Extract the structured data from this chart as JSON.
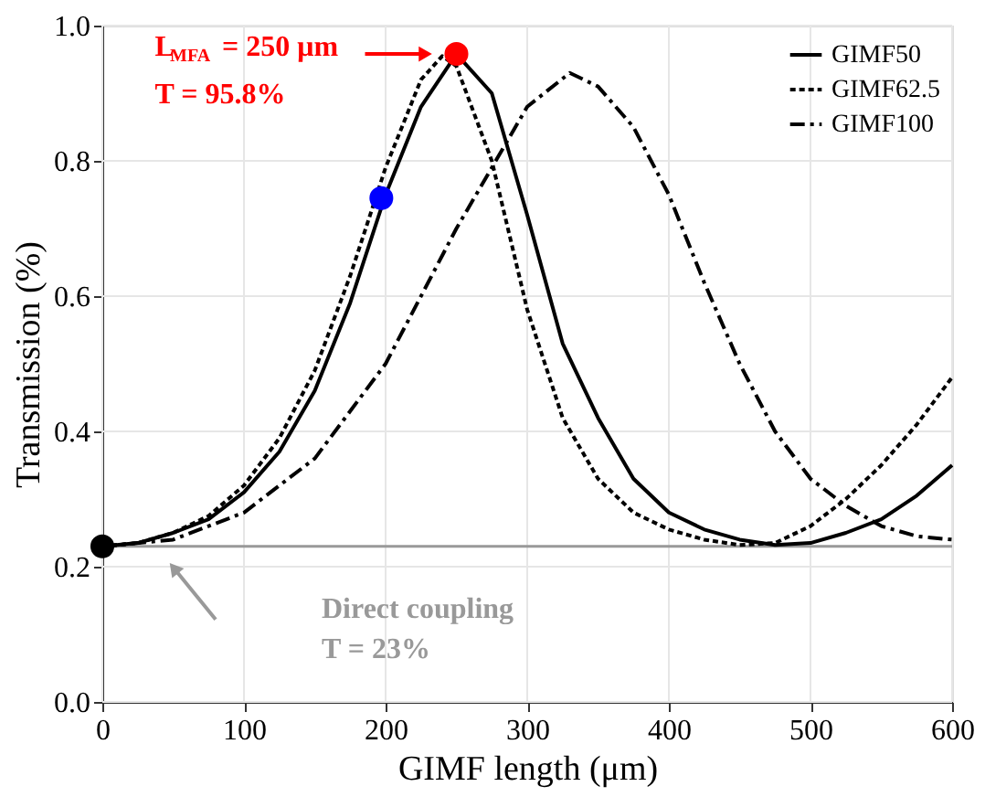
{
  "chart_data": {
    "type": "line",
    "xlabel": "GIMF length (μm)",
    "ylabel": "Transmission (%)",
    "xlim": [
      0,
      600
    ],
    "xticks": [
      0,
      100,
      200,
      300,
      400,
      500,
      600
    ],
    "ylim": [
      0,
      1
    ],
    "yticks": [
      {
        "value": 0,
        "label": "0.0"
      },
      0.2,
      0.4,
      0.6,
      0.8,
      {
        "value": 1,
        "label": "1.0"
      }
    ],
    "grid": true,
    "legend": "top right",
    "marker": "none",
    "series": [
      {
        "name": "GIMF50",
        "color": "#000000",
        "line_style": "solid",
        "x": [
          0,
          25,
          50,
          75,
          100,
          125,
          150,
          175,
          200,
          225,
          250,
          275,
          300,
          325,
          350,
          375,
          400,
          425,
          450,
          475,
          500,
          525,
          550,
          575,
          600
        ],
        "values": [
          0.23,
          0.235,
          0.25,
          0.27,
          0.31,
          0.37,
          0.46,
          0.59,
          0.75,
          0.88,
          0.958,
          0.9,
          0.72,
          0.53,
          0.42,
          0.33,
          0.28,
          0.255,
          0.24,
          0.232,
          0.235,
          0.25,
          0.27,
          0.305,
          0.35
        ]
      },
      {
        "name": "GIMF62.5",
        "color": "#000000",
        "line_style": "dotted",
        "x": [
          0,
          25,
          50,
          75,
          100,
          125,
          150,
          175,
          200,
          225,
          240,
          250,
          275,
          300,
          325,
          350,
          375,
          400,
          425,
          450,
          475,
          500,
          525,
          550,
          575,
          600
        ],
        "values": [
          0.23,
          0.235,
          0.25,
          0.275,
          0.32,
          0.39,
          0.49,
          0.63,
          0.79,
          0.92,
          0.955,
          0.94,
          0.8,
          0.58,
          0.42,
          0.33,
          0.28,
          0.255,
          0.24,
          0.232,
          0.235,
          0.26,
          0.3,
          0.35,
          0.41,
          0.48
        ]
      },
      {
        "name": "GIMF100",
        "color": "#000000",
        "line_style": "dashed",
        "x": [
          0,
          50,
          100,
          150,
          200,
          250,
          275,
          300,
          330,
          350,
          375,
          400,
          425,
          450,
          475,
          500,
          525,
          550,
          575,
          600
        ],
        "values": [
          0.23,
          0.24,
          0.28,
          0.36,
          0.5,
          0.7,
          0.79,
          0.88,
          0.93,
          0.91,
          0.85,
          0.75,
          0.62,
          0.5,
          0.4,
          0.33,
          0.29,
          0.26,
          0.245,
          0.24
        ]
      },
      {
        "type": "scatter",
        "marker": "circle",
        "x": [
          0,
          197,
          250
        ],
        "values": [
          0.23,
          0.745,
          0.958
        ],
        "colors": [
          "#000000",
          "#0000ff",
          "#ff0000"
        ]
      }
    ],
    "ref_lines": [
      {
        "axis": "y",
        "value": 0.23,
        "color": "#999999"
      }
    ],
    "annotations": [
      "L$_{MFA}$ = 250 μm",
      "T = 95.8%",
      "Direct coupling",
      "T = 23%"
    ]
  }
}
